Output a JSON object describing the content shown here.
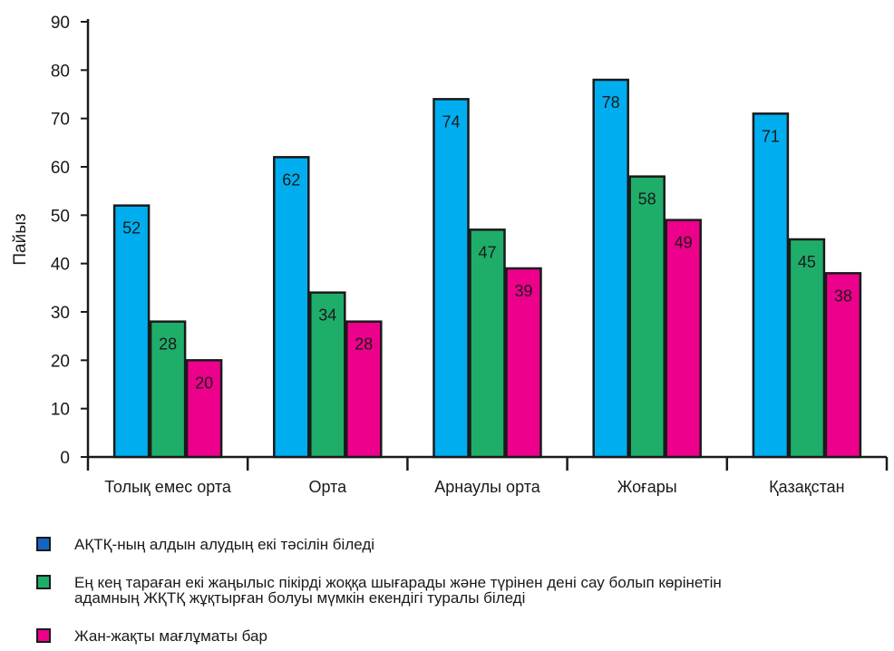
{
  "chart_data": {
    "type": "bar",
    "ylabel": "Пайыз",
    "ylim": [
      0,
      90
    ],
    "yticks": [
      0,
      10,
      20,
      30,
      40,
      50,
      60,
      70,
      80,
      90
    ],
    "categories": [
      "Толық емес орта",
      "Орта",
      "Арнаулы орта",
      "Жоғары",
      "Қазақстан"
    ],
    "series": [
      {
        "name": "АҚТҚ-ның алдын алудың екі тәсілін біледі",
        "color": "#00AEEF",
        "values": [
          52,
          62,
          74,
          78,
          71
        ]
      },
      {
        "name": "Ең кең тараған екі жаңылыс пікірді жоққа шығарады және түрінен дені сау болып көрінетін\nадамның ЖҚТҚ жұқтырған болуы мүмкін екендігі туралы біледі",
        "color": "#1FAE6A",
        "values": [
          28,
          34,
          47,
          58,
          45
        ]
      },
      {
        "name": "Жан-жақты мағлұматы бар",
        "color": "#EC008C",
        "values": [
          20,
          28,
          39,
          49,
          38
        ]
      }
    ],
    "legend_swatch_colors": [
      "#1565C0",
      "#1FAE6A",
      "#EC008C"
    ],
    "legend_position": "bottom",
    "grid": false
  }
}
